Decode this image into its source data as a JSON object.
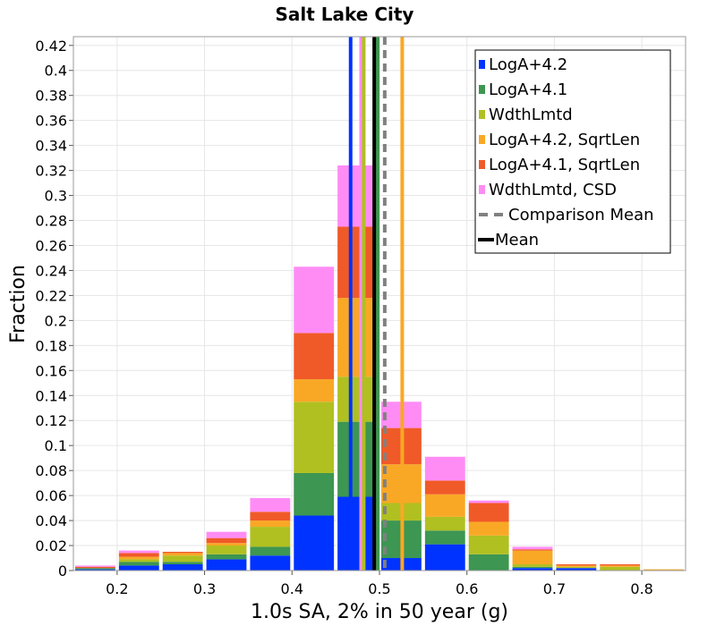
{
  "chart_data": {
    "type": "bar",
    "stacked": true,
    "title": "Salt Lake City",
    "xlabel": "1.0s SA, 2% in 50 year (g)",
    "ylabel": "Fraction",
    "xlim": [
      0.15,
      0.85
    ],
    "ylim": [
      0,
      0.427
    ],
    "grid": true,
    "legend_position": "top-right",
    "bin_width": 0.05,
    "bin_centers": [
      0.175,
      0.225,
      0.275,
      0.325,
      0.375,
      0.425,
      0.475,
      0.525,
      0.575,
      0.625,
      0.675,
      0.725,
      0.775,
      0.825
    ],
    "x_ticks": [
      {
        "value": 0.2,
        "label": "0.2"
      },
      {
        "value": 0.3,
        "label": "0.3"
      },
      {
        "value": 0.4,
        "label": "0.4"
      },
      {
        "value": 0.5,
        "label": "0.5"
      },
      {
        "value": 0.6,
        "label": "0.6"
      },
      {
        "value": 0.7,
        "label": "0.7"
      },
      {
        "value": 0.8,
        "label": "0.8"
      }
    ],
    "y_ticks": [
      {
        "value": 0,
        "label": "0"
      },
      {
        "value": 0.02,
        "label": "0.02"
      },
      {
        "value": 0.04,
        "label": "0.04"
      },
      {
        "value": 0.06,
        "label": "0.06"
      },
      {
        "value": 0.08,
        "label": "0.08"
      },
      {
        "value": 0.1,
        "label": "0.1"
      },
      {
        "value": 0.12,
        "label": "0.12"
      },
      {
        "value": 0.14,
        "label": "0.14"
      },
      {
        "value": 0.16,
        "label": "0.16"
      },
      {
        "value": 0.18,
        "label": "0.18"
      },
      {
        "value": 0.2,
        "label": "0.2"
      },
      {
        "value": 0.22,
        "label": "0.22"
      },
      {
        "value": 0.24,
        "label": "0.24"
      },
      {
        "value": 0.26,
        "label": "0.26"
      },
      {
        "value": 0.28,
        "label": "0.28"
      },
      {
        "value": 0.3,
        "label": "0.3"
      },
      {
        "value": 0.32,
        "label": "0.32"
      },
      {
        "value": 0.34,
        "label": "0.34"
      },
      {
        "value": 0.36,
        "label": "0.36"
      },
      {
        "value": 0.38,
        "label": "0.38"
      },
      {
        "value": 0.4,
        "label": "0.4"
      },
      {
        "value": 0.42,
        "label": "0.42"
      }
    ],
    "series": [
      {
        "name": "LogA+4.2",
        "color": "#0033ff",
        "values": [
          0.001,
          0.004,
          0.005,
          0.009,
          0.012,
          0.044,
          0.059,
          0.01,
          0.021,
          0.0,
          0.002,
          0.002,
          0.0,
          0.0
        ]
      },
      {
        "name": "LogA+4.1",
        "color": "#3d9651",
        "values": [
          0.001,
          0.003,
          0.002,
          0.004,
          0.007,
          0.034,
          0.06,
          0.03,
          0.011,
          0.013,
          0.001,
          0.0,
          0.0,
          0.0
        ]
      },
      {
        "name": "WdthLmtd",
        "color": "#b0c020",
        "values": [
          0.0,
          0.002,
          0.005,
          0.007,
          0.016,
          0.057,
          0.036,
          0.014,
          0.011,
          0.015,
          0.002,
          0.001,
          0.003,
          0.0
        ]
      },
      {
        "name": "LogA+4.2, SqrtLen",
        "color": "#f9a825",
        "values": [
          0.0,
          0.002,
          0.002,
          0.002,
          0.005,
          0.018,
          0.063,
          0.031,
          0.018,
          0.011,
          0.011,
          0.001,
          0.001,
          0.001
        ]
      },
      {
        "name": "LogA+4.1, SqrtLen",
        "color": "#f05a28",
        "values": [
          0.001,
          0.003,
          0.001,
          0.004,
          0.007,
          0.037,
          0.057,
          0.029,
          0.011,
          0.015,
          0.001,
          0.001,
          0.001,
          0.0
        ]
      },
      {
        "name": "WdthLmtd, CSD",
        "color": "#ff8cf5",
        "values": [
          0.001,
          0.002,
          0.0,
          0.005,
          0.011,
          0.053,
          0.049,
          0.021,
          0.019,
          0.002,
          0.002,
          0.0,
          0.0,
          0.0
        ]
      }
    ],
    "mean_lines": [
      {
        "label": "LogA+4.2",
        "color": "#0033ff",
        "x": 0.467
      },
      {
        "label": "WdthLmtd, CSD",
        "color": "#ff8cf5",
        "x": 0.479
      },
      {
        "label": "WdthLmtd",
        "color": "#b0c020",
        "x": 0.482
      },
      {
        "label": "LogA+4.1, SqrtLen",
        "color": "#f05a28",
        "x": 0.496
      },
      {
        "label": "LogA+4.1",
        "color": "#3d9651",
        "x": 0.498
      },
      {
        "label": "LogA+4.2, SqrtLen",
        "color": "#f9a825",
        "x": 0.526
      }
    ],
    "overall_mean": {
      "label": "Mean",
      "x": 0.494,
      "color": "#000000"
    },
    "comparison_mean": {
      "label": "Comparison Mean",
      "x": 0.506,
      "color": "#808080"
    }
  }
}
